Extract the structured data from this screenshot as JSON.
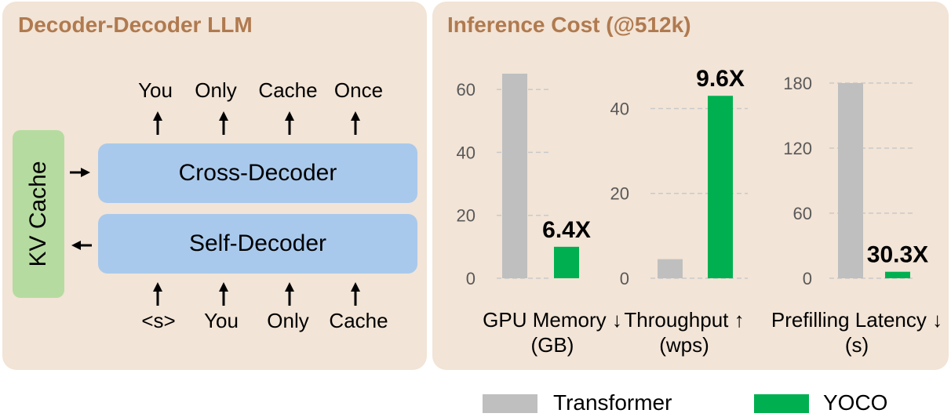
{
  "left_panel": {
    "title": "Decoder-Decoder LLM",
    "kv_cache_label": "KV Cache",
    "cross_decoder_label": "Cross-Decoder",
    "self_decoder_label": "Self-Decoder",
    "output_tokens": [
      "You",
      "Only",
      "Cache",
      "Once"
    ],
    "input_tokens": [
      "<s>",
      "You",
      "Only",
      "Cache"
    ]
  },
  "right_panel": {
    "title": "Inference Cost (@512k)"
  },
  "colors": {
    "transformer": "#bfbfbf",
    "yoco": "#00b050",
    "panel_bg": "#f2e4d6",
    "title": "#b07a4f",
    "decoder_box": "#a9c9ec",
    "kv_cache": "#b6dba0"
  },
  "chart_data": [
    {
      "type": "bar",
      "categories": [
        "Transformer",
        "YOCO"
      ],
      "values": [
        65,
        10
      ],
      "xlabel": "GPU Memory ↓\n(GB)",
      "ylim": [
        0,
        65
      ],
      "yticks": [
        0,
        20,
        40,
        60
      ],
      "annotation": "6.4X",
      "grid": true
    },
    {
      "type": "bar",
      "categories": [
        "Transformer",
        "YOCO"
      ],
      "values": [
        4.5,
        43
      ],
      "xlabel": "Throughput ↑\n(wps)",
      "ylim": [
        0,
        46
      ],
      "yticks": [
        0,
        20,
        40
      ],
      "annotation": "9.6X",
      "grid": true
    },
    {
      "type": "bar",
      "categories": [
        "Transformer",
        "YOCO"
      ],
      "values": [
        180,
        6
      ],
      "xlabel": "Prefilling Latency ↓\n(s)",
      "ylim": [
        0,
        180
      ],
      "yticks": [
        0,
        60,
        120,
        180
      ],
      "annotation": "30.3X",
      "grid": true
    }
  ],
  "legend": [
    {
      "name": "Transformer",
      "color": "#bfbfbf"
    },
    {
      "name": "YOCO",
      "color": "#00b050"
    }
  ]
}
